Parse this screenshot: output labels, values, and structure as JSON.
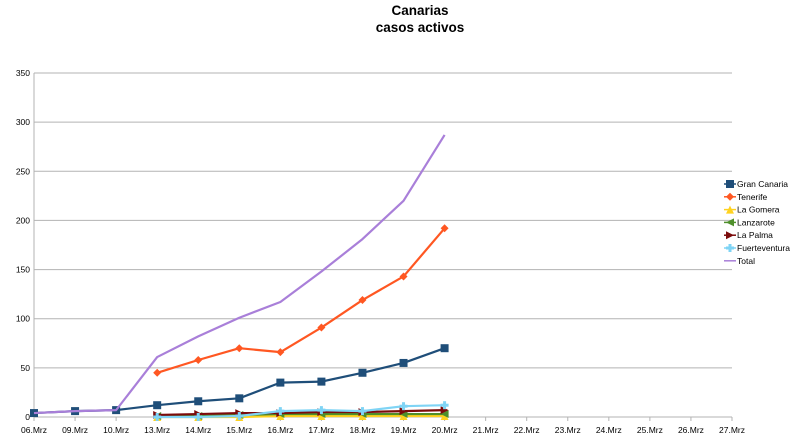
{
  "chart_data": {
    "type": "line",
    "title": "Canarias",
    "subtitle": "casos activos",
    "xlabel": "",
    "ylabel": "",
    "categories": [
      "06.Mrz",
      "09.Mrz",
      "10.Mrz",
      "13.Mrz",
      "14.Mrz",
      "15.Mrz",
      "16.Mrz",
      "17.Mrz",
      "18.Mrz",
      "19.Mrz",
      "20.Mrz",
      "21.Mrz",
      "22.Mrz",
      "23.Mrz",
      "24.Mrz",
      "25.Mrz",
      "26.Mrz",
      "27.Mrz"
    ],
    "ylim": [
      0,
      350
    ],
    "yticks": [
      0,
      50,
      100,
      150,
      200,
      250,
      300,
      350
    ],
    "grid": "horizontal",
    "legend": "right",
    "series": [
      {
        "name": "Gran Canaria",
        "color": "#1f4e79",
        "marker": "square",
        "values": [
          4,
          6,
          7,
          12,
          16,
          19,
          35,
          36,
          45,
          55,
          70,
          null,
          null,
          null,
          null,
          null,
          null,
          null
        ]
      },
      {
        "name": "Tenerife",
        "color": "#ff5722",
        "marker": "diamond",
        "values": [
          null,
          null,
          null,
          45,
          58,
          70,
          66,
          91,
          119,
          143,
          192,
          null,
          null,
          null,
          null,
          null,
          null,
          null
        ]
      },
      {
        "name": "La Gomera",
        "color": "#ffd21f",
        "marker": "triangle",
        "values": [
          null,
          null,
          null,
          0,
          0,
          0,
          1,
          1,
          1,
          1,
          1,
          null,
          null,
          null,
          null,
          null,
          null,
          null
        ]
      },
      {
        "name": "Lanzarote",
        "color": "#4e8f2b",
        "marker": "triangle-left",
        "values": [
          null,
          null,
          null,
          1,
          1,
          2,
          3,
          3,
          3,
          3,
          3,
          null,
          null,
          null,
          null,
          null,
          null,
          null
        ]
      },
      {
        "name": "La Palma",
        "color": "#7b0b0b",
        "marker": "triangle-right",
        "values": [
          null,
          null,
          null,
          2,
          3,
          4,
          4,
          5,
          5,
          6,
          7,
          null,
          null,
          null,
          null,
          null,
          null,
          null
        ]
      },
      {
        "name": "Fuerteventura",
        "color": "#7fd4f5",
        "marker": "cross",
        "values": [
          null,
          null,
          null,
          0,
          0,
          1,
          6,
          7,
          6,
          11,
          12,
          null,
          null,
          null,
          null,
          null,
          null,
          null
        ]
      },
      {
        "name": "Total",
        "color": "#a97fd9",
        "marker": "bowtie",
        "values": [
          4,
          6,
          7,
          61,
          82,
          101,
          117,
          148,
          181,
          220,
          287,
          null,
          null,
          null,
          null,
          null,
          null,
          null
        ]
      }
    ]
  }
}
